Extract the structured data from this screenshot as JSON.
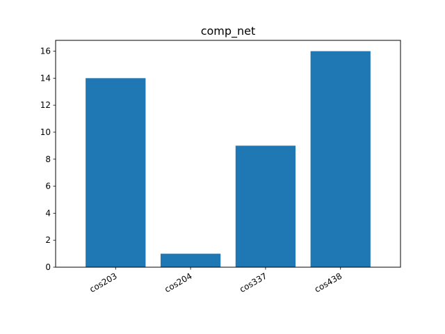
{
  "chart_data": {
    "type": "bar",
    "title": "comp_net",
    "xlabel": "",
    "ylabel": "",
    "categories": [
      "cos203",
      "cos204",
      "cos337",
      "cos438"
    ],
    "values": [
      14,
      1,
      9,
      16
    ],
    "ylim": [
      0,
      16.8
    ],
    "yticks": [
      0,
      2,
      4,
      6,
      8,
      10,
      12,
      14,
      16
    ],
    "grid": false,
    "bar_color": "#1f77b4",
    "xtick_rotation": 30
  }
}
